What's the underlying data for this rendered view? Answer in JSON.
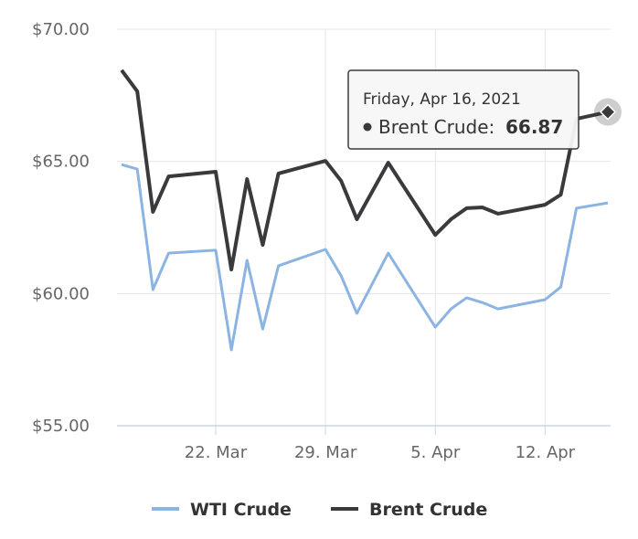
{
  "chart_data": {
    "type": "line",
    "x": [
      "2021-03-16",
      "2021-03-17",
      "2021-03-18",
      "2021-03-19",
      "2021-03-22",
      "2021-03-23",
      "2021-03-24",
      "2021-03-25",
      "2021-03-26",
      "2021-03-29",
      "2021-03-30",
      "2021-03-31",
      "2021-04-02",
      "2021-04-05",
      "2021-04-06",
      "2021-04-07",
      "2021-04-08",
      "2021-04-09",
      "2021-04-12",
      "2021-04-13",
      "2021-04-14",
      "2021-04-16"
    ],
    "series": [
      {
        "name": "WTI Crude",
        "color": "#8cb4e2",
        "values": [
          64.88,
          64.71,
          60.15,
          61.53,
          61.64,
          57.87,
          61.26,
          58.66,
          61.05,
          61.67,
          60.67,
          59.25,
          61.53,
          58.73,
          59.42,
          59.84,
          59.66,
          59.42,
          59.77,
          60.25,
          63.23,
          63.43
        ]
      },
      {
        "name": "Brent Crude",
        "color": "#3a3a3d",
        "values": [
          68.45,
          67.65,
          63.09,
          64.43,
          64.61,
          60.91,
          64.33,
          61.84,
          64.54,
          65.02,
          64.26,
          62.81,
          64.95,
          62.22,
          62.81,
          63.23,
          63.26,
          63.02,
          63.36,
          63.74,
          66.61,
          66.87
        ]
      }
    ],
    "xlim": [
      "2021-03-16",
      "2021-04-16"
    ],
    "xticks": [
      {
        "value": "2021-03-22",
        "label": "22. Mar"
      },
      {
        "value": "2021-03-29",
        "label": "29. Mar"
      },
      {
        "value": "2021-04-05",
        "label": "5. Apr"
      },
      {
        "value": "2021-04-12",
        "label": "12. Apr"
      }
    ],
    "ylim": [
      55,
      70
    ],
    "yticks": [
      {
        "value": 55,
        "label": "$55.00"
      },
      {
        "value": 60,
        "label": "$60.00"
      },
      {
        "value": 65,
        "label": "$65.00"
      },
      {
        "value": 70,
        "label": "$70.00"
      }
    ],
    "grid": true,
    "tooltip": {
      "title": "Friday, Apr 16, 2021",
      "label": "Brent Crude:"
    }
  }
}
